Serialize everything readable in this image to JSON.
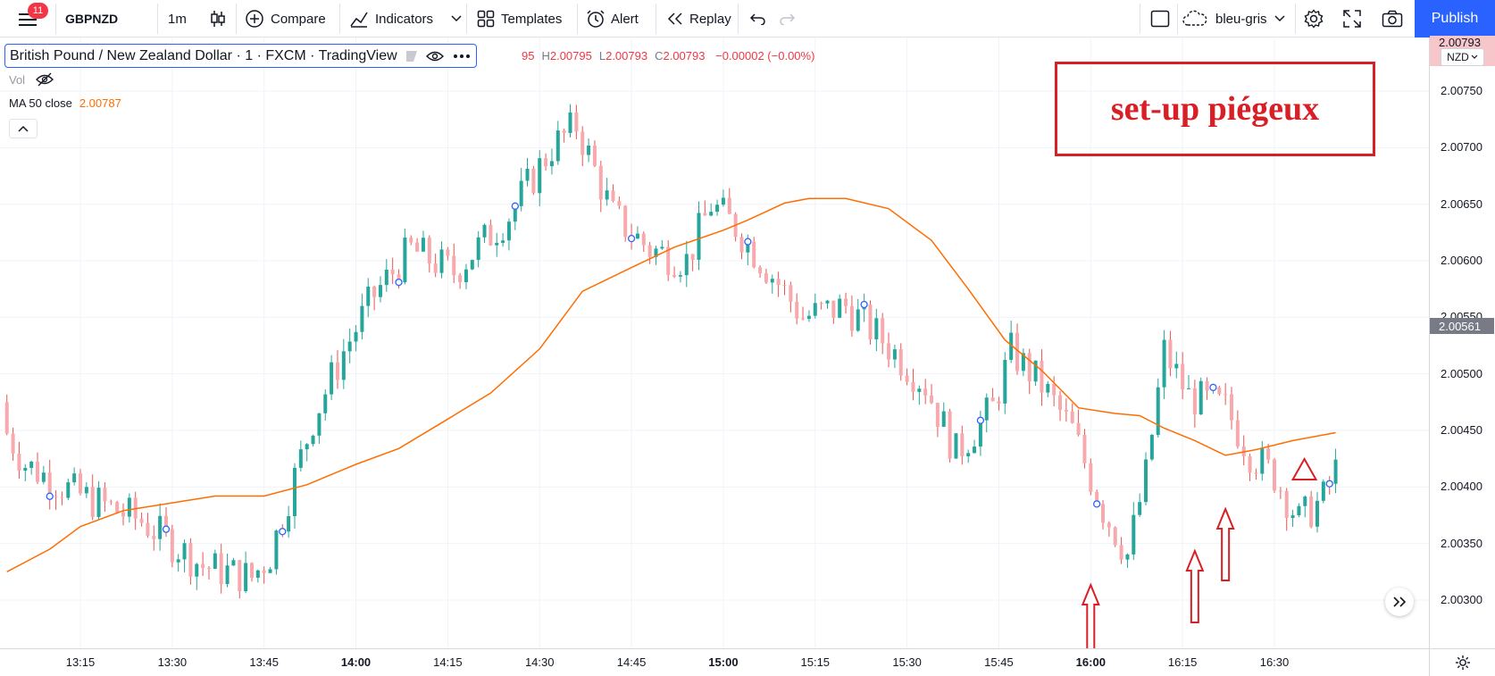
{
  "toolbar": {
    "notifications": "11",
    "symbol": "GBPNZD",
    "interval": "1m",
    "compare_label": "Compare",
    "indicators_label": "Indicators",
    "templates_label": "Templates",
    "alert_label": "Alert",
    "replay_label": "Replay",
    "layout_name": "bleu-gris",
    "publish_label": "Publish"
  },
  "legend": {
    "title": "British Pound / New Zealand Dollar · 1 · FXCM · TradingView",
    "ohlc": {
      "o_partial": "95",
      "h_key": "H",
      "h": "2.00795",
      "l_key": "L",
      "l": "2.00793",
      "c_key": "C",
      "c": "2.00793",
      "change": "−0.00002 (−0.00%)"
    },
    "volume_label": "Vol",
    "ma_label": "MA 50 close",
    "ma_value": "2.00787"
  },
  "annotation": {
    "text": "set-up piégeux",
    "color": "#d81f26"
  },
  "price_scale": {
    "currency": "NZD",
    "top_label": "2.00793",
    "last_price": "2.00561",
    "ticks": [
      "2.00750",
      "2.00700",
      "2.00650",
      "2.00600",
      "2.00550",
      "2.00500",
      "2.00450",
      "2.00400",
      "2.00350",
      "2.00300"
    ]
  },
  "time_scale": {
    "ticks": [
      {
        "label": "13:15",
        "bold": false
      },
      {
        "label": "13:30",
        "bold": false
      },
      {
        "label": "13:45",
        "bold": false
      },
      {
        "label": "14:00",
        "bold": true
      },
      {
        "label": "14:15",
        "bold": false
      },
      {
        "label": "14:30",
        "bold": false
      },
      {
        "label": "14:45",
        "bold": false
      },
      {
        "label": "15:00",
        "bold": true
      },
      {
        "label": "15:15",
        "bold": false
      },
      {
        "label": "15:30",
        "bold": false
      },
      {
        "label": "15:45",
        "bold": false
      },
      {
        "label": "16:00",
        "bold": true
      },
      {
        "label": "16:15",
        "bold": false
      },
      {
        "label": "16:30",
        "bold": false
      }
    ]
  },
  "colors": {
    "up": "#26a69a",
    "down": "#ef5350",
    "ma": "#ff6d00",
    "accent": "#2962ff",
    "annotation": "#d81f26"
  },
  "chart_data": {
    "type": "candlestick",
    "symbol": "GBPNZD",
    "interval": "1m",
    "y_range": [
      2.00295,
      2.008
    ],
    "x_range": [
      "13:03",
      "16:40"
    ],
    "ma_series": {
      "name": "MA 50 close",
      "points": [
        [
          "13:03",
          2.00325
        ],
        [
          "13:10",
          2.00345
        ],
        [
          "13:15",
          2.00365
        ],
        [
          "13:22",
          2.00379
        ],
        [
          "13:30",
          2.00386
        ],
        [
          "13:37",
          2.00392
        ],
        [
          "13:45",
          2.00392
        ],
        [
          "13:52",
          2.00402
        ],
        [
          "14:00",
          2.0042
        ],
        [
          "14:07",
          2.00434
        ],
        [
          "14:15",
          2.0046
        ],
        [
          "14:22",
          2.00483
        ],
        [
          "14:30",
          2.00522
        ],
        [
          "14:37",
          2.00573
        ],
        [
          "14:45",
          2.00594
        ],
        [
          "14:52",
          2.00612
        ],
        [
          "15:00",
          2.00627
        ],
        [
          "15:04",
          2.00636
        ],
        [
          "15:10",
          2.00651
        ],
        [
          "15:14",
          2.00655
        ],
        [
          "15:20",
          2.00655
        ],
        [
          "15:27",
          2.00646
        ],
        [
          "15:34",
          2.00618
        ],
        [
          "15:40",
          2.00575
        ],
        [
          "15:46",
          2.0053
        ],
        [
          "15:52",
          2.00503
        ],
        [
          "15:58",
          2.0047
        ],
        [
          "16:04",
          2.00465
        ],
        [
          "16:08",
          2.00463
        ],
        [
          "16:12",
          2.00452
        ],
        [
          "16:17",
          2.00441
        ],
        [
          "16:22",
          2.00428
        ],
        [
          "16:27",
          2.00433
        ],
        [
          "16:33",
          2.00441
        ],
        [
          "16:40",
          2.00448
        ]
      ]
    },
    "markers": [
      {
        "type": "up-arrow",
        "time": "16:00"
      },
      {
        "type": "up-arrow",
        "time": "16:17"
      },
      {
        "type": "up-arrow",
        "time": "16:22"
      },
      {
        "type": "triangle",
        "time": "16:33"
      }
    ]
  }
}
